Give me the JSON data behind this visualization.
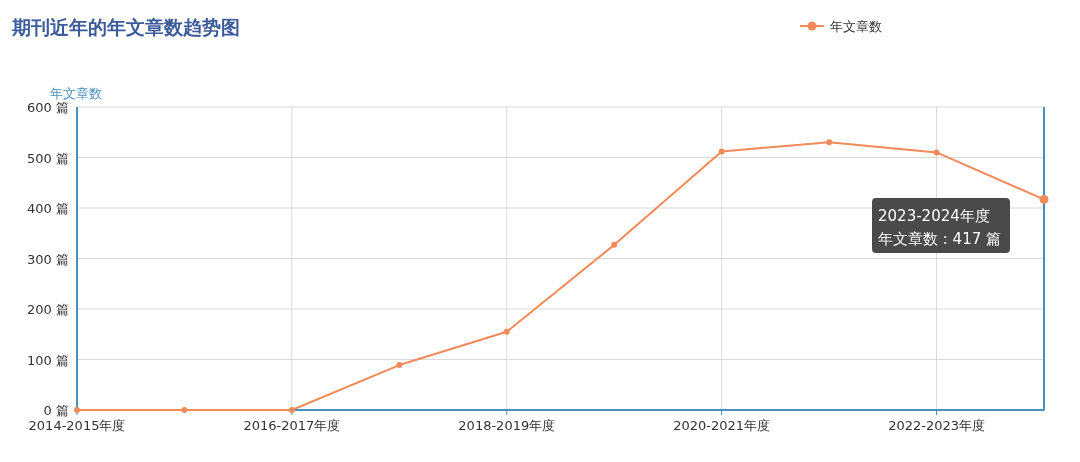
{
  "chart_data": {
    "type": "line",
    "title": "期刊近年的年文章数趋势图",
    "ylabel": "年文章数",
    "categories": [
      "2014-2015年度",
      null,
      "2016-2017年度",
      null,
      "2018-2019年度",
      null,
      "2020-2021年度",
      null,
      "2022-2023年度",
      null
    ],
    "series": [
      {
        "name": "年文章数",
        "color": "#f28a5a",
        "values": [
          0,
          0,
          0,
          89,
          155,
          327,
          512,
          530,
          510,
          417
        ]
      }
    ],
    "ylim": [
      0,
      600
    ],
    "yticks": [
      {
        "value": 0,
        "label": "0 篇"
      },
      {
        "value": 100,
        "label": "100 篇"
      },
      {
        "value": 200,
        "label": "200 篇"
      },
      {
        "value": 300,
        "label": "300 篇"
      },
      {
        "value": 400,
        "label": "400 篇"
      },
      {
        "value": 500,
        "label": "500 篇"
      },
      {
        "value": 600,
        "label": "600 篇"
      }
    ],
    "grid": true,
    "legend": "top right",
    "marker": "circle",
    "line_style": "solid",
    "annotations": [
      "2023-2024年度",
      "年文章数 : 417 篇"
    ]
  }
}
